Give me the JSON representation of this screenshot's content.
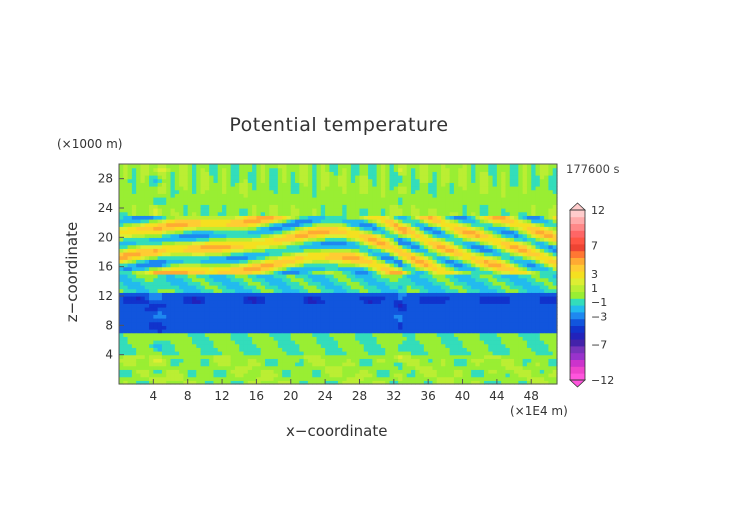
{
  "chart_data": {
    "type": "heatmap",
    "title": "Potential temperature",
    "xlabel": "x−coordinate",
    "ylabel": "z−coordinate",
    "x_unit": "(×1E4 m)",
    "y_unit": "(×1000 m)",
    "time_label": "177600 s",
    "xlim": [
      0,
      51
    ],
    "ylim": [
      0,
      30
    ],
    "x_ticks": [
      4,
      8,
      12,
      16,
      20,
      24,
      28,
      32,
      36,
      40,
      44,
      48
    ],
    "y_ticks": [
      4,
      8,
      12,
      16,
      20,
      24,
      28
    ],
    "colorbar": {
      "levels": [
        -12,
        -11,
        -10,
        -9,
        -8,
        -7,
        -6,
        -5,
        -4,
        -3,
        -2,
        -1,
        0,
        1,
        2,
        3,
        4,
        5,
        6,
        7,
        8,
        9,
        10,
        11,
        12
      ],
      "labels": [
        "12",
        "7",
        "3",
        "1",
        "−1",
        "−3",
        "−7",
        "−12"
      ],
      "label_values": [
        12,
        7,
        3,
        1,
        -1,
        -3,
        -7,
        -12
      ],
      "colors": [
        "#ff55dd",
        "#ee44cc",
        "#cc33cc",
        "#9933cc",
        "#7733bb",
        "#4422aa",
        "#2222bb",
        "#1133cc",
        "#1155dd",
        "#1e88f0",
        "#22bbee",
        "#33ddbb",
        "#99ee33",
        "#bbee33",
        "#ddee33",
        "#f5e020",
        "#ffcc33",
        "#ffaa33",
        "#ff7733",
        "#ee4433",
        "#ff5544",
        "#ff6666",
        "#ff8888",
        "#ffaaaa",
        "#ffcccc"
      ],
      "extend": "both"
    },
    "bands": [
      {
        "z_range": [
          0,
          4
        ],
        "value": 0.5,
        "note": "green with cyan patches"
      },
      {
        "z_range": [
          4,
          7
        ],
        "value": 0,
        "note": "green/yellow-green"
      },
      {
        "z_range": [
          7,
          12.5
        ],
        "value": -3.5,
        "note": "dark blue layer"
      },
      {
        "z_range": [
          12.5,
          15
        ],
        "value": -0.5,
        "note": "cyan / light blue"
      },
      {
        "z_range": [
          15,
          23
        ],
        "value": 2,
        "note": "orange/red and blue wavy stripes"
      },
      {
        "z_range": [
          23,
          30
        ],
        "value": 0.5,
        "note": "green/yellow with vertical streaks"
      }
    ]
  }
}
